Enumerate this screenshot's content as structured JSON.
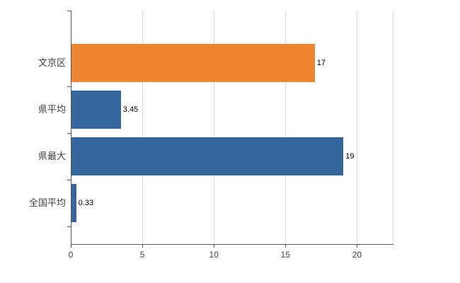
{
  "chart_data": {
    "type": "bar",
    "orientation": "horizontal",
    "title": "",
    "xlabel": "",
    "ylabel": "",
    "categories": [
      "文京区",
      "県平均",
      "県最大",
      "全国平均"
    ],
    "values": [
      17,
      3.45,
      19,
      0.33
    ],
    "value_labels": [
      "17",
      "3.45",
      "19",
      "0.33"
    ],
    "bar_colors": [
      "#ef8432",
      "#35679e",
      "#35679e",
      "#35679e"
    ],
    "x_ticks": [
      0,
      5,
      10,
      15,
      20
    ],
    "x_tick_labels": [
      "0",
      "5",
      "10",
      "15",
      "20"
    ],
    "xlim": [
      0,
      22.5
    ],
    "grid": "vertical",
    "legend": "none",
    "gridline_color": "#d9d9d9",
    "axis_color": "#595959",
    "background_color": "#ffffff"
  }
}
